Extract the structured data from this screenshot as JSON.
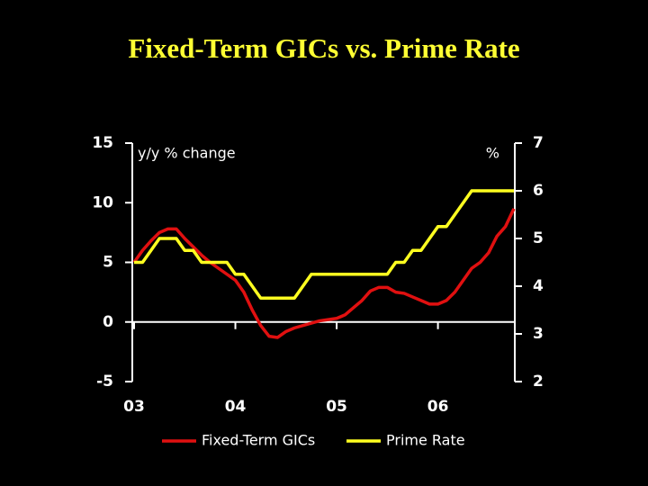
{
  "chart_data": {
    "type": "line",
    "title": "Fixed-Term GICs vs. Prime Rate",
    "ylabel": "y/y % change",
    "y2label": "%",
    "categories": [
      "03",
      null,
      null,
      null,
      null,
      null,
      null,
      null,
      null,
      null,
      null,
      null,
      "04",
      null,
      null,
      null,
      null,
      null,
      null,
      null,
      null,
      null,
      null,
      null,
      "05",
      null,
      null,
      null,
      null,
      null,
      null,
      null,
      null,
      null,
      null,
      null,
      "06",
      null,
      null,
      null,
      null,
      null,
      null,
      null,
      null,
      null
    ],
    "series": [
      {
        "name": "Fixed-Term GICs",
        "color": "#e01010",
        "axis": "y",
        "values": [
          5.0,
          6.0,
          6.8,
          7.5,
          7.8,
          7.8,
          7.0,
          6.3,
          5.6,
          5.0,
          4.5,
          4.0,
          3.5,
          2.5,
          1.0,
          -0.3,
          -1.2,
          -1.3,
          -0.8,
          -0.5,
          -0.3,
          -0.1,
          0.1,
          0.2,
          0.3,
          0.6,
          1.2,
          1.8,
          2.6,
          2.9,
          2.9,
          2.5,
          2.4,
          2.1,
          1.8,
          1.5,
          1.5,
          1.8,
          2.5,
          3.5,
          4.5,
          5.0,
          5.8,
          7.2,
          8.0,
          9.5
        ]
      },
      {
        "name": "Prime Rate",
        "color": "#ffff20",
        "axis": "y2",
        "values": [
          4.5,
          4.5,
          4.75,
          5.0,
          5.0,
          5.0,
          4.75,
          4.75,
          4.5,
          4.5,
          4.5,
          4.5,
          4.25,
          4.25,
          4.0,
          3.75,
          3.75,
          3.75,
          3.75,
          3.75,
          4.0,
          4.25,
          4.25,
          4.25,
          4.25,
          4.25,
          4.25,
          4.25,
          4.25,
          4.25,
          4.25,
          4.5,
          4.5,
          4.75,
          4.75,
          5.0,
          5.25,
          5.25,
          5.5,
          5.75,
          6.0,
          6.0,
          6.0,
          6.0,
          6.0,
          6.0
        ]
      }
    ],
    "ylim": [
      -5,
      15
    ],
    "yticks": [
      -5,
      0,
      5,
      10,
      15
    ],
    "y2lim": [
      2,
      7
    ],
    "y2ticks": [
      2,
      3,
      4,
      5,
      6,
      7
    ],
    "legend": "bottom"
  }
}
